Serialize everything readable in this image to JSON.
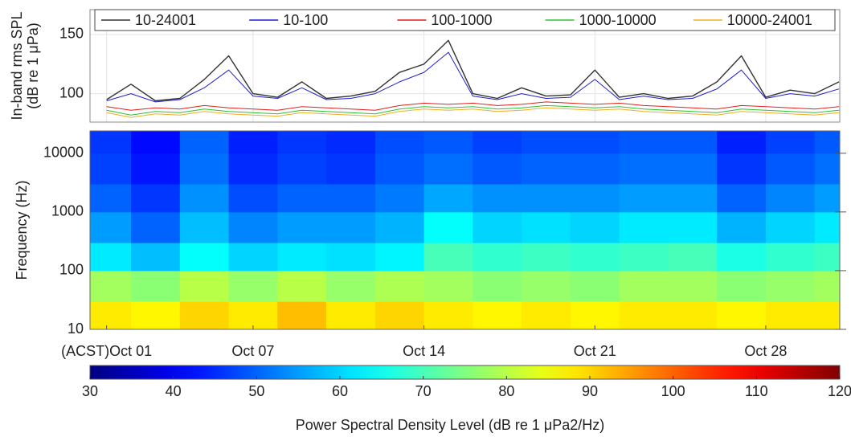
{
  "chart_data": [
    {
      "type": "line",
      "ylabel_lines": [
        "In-band rms SPL",
        "(dB re 1 μPa)"
      ],
      "x": [
        1,
        2,
        3,
        4,
        5,
        6,
        7,
        8,
        9,
        10,
        11,
        12,
        13,
        14,
        15,
        16,
        17,
        18,
        19,
        20,
        21,
        22,
        23,
        24,
        25,
        26,
        27,
        28,
        29,
        30,
        31
      ],
      "xlim": [
        0.32,
        31.03
      ],
      "ylim": [
        76,
        171
      ],
      "yticks": [
        100,
        150
      ],
      "grid": true,
      "legend": "top",
      "series": [
        {
          "name": "10-24001",
          "color": "#333333",
          "values": [
            95,
            108,
            94,
            96,
            112,
            132,
            100,
            97,
            110,
            96,
            98,
            102,
            118,
            125,
            145,
            100,
            96,
            105,
            98,
            99,
            120,
            97,
            100,
            96,
            98,
            110,
            132,
            97,
            103,
            100,
            110
          ]
        },
        {
          "name": "10-100",
          "color": "#1f1fd0",
          "values": [
            94,
            100,
            93,
            95,
            105,
            120,
            98,
            96,
            105,
            95,
            96,
            100,
            110,
            118,
            135,
            98,
            95,
            100,
            96,
            97,
            112,
            95,
            98,
            95,
            96,
            104,
            120,
            96,
            100,
            98,
            104
          ]
        },
        {
          "name": "100-1000",
          "color": "#e0201a",
          "values": [
            89,
            86,
            88,
            87,
            90,
            88,
            87,
            86,
            89,
            88,
            87,
            86,
            90,
            92,
            91,
            92,
            90,
            91,
            93,
            92,
            91,
            92,
            90,
            89,
            88,
            87,
            90,
            89,
            88,
            87,
            89
          ]
        },
        {
          "name": "1000-10000",
          "color": "#2fc02f",
          "values": [
            86,
            82,
            85,
            84,
            87,
            85,
            84,
            83,
            86,
            85,
            84,
            83,
            87,
            89,
            88,
            89,
            87,
            88,
            90,
            89,
            88,
            89,
            87,
            86,
            85,
            84,
            87,
            86,
            85,
            84,
            86
          ]
        },
        {
          "name": "10000-24001",
          "color": "#f0b020",
          "values": [
            84,
            80,
            83,
            82,
            85,
            83,
            82,
            81,
            84,
            83,
            82,
            81,
            85,
            87,
            86,
            87,
            85,
            86,
            88,
            87,
            86,
            87,
            85,
            84,
            83,
            82,
            85,
            84,
            83,
            82,
            84
          ]
        }
      ]
    },
    {
      "type": "heatmap",
      "ylabel": "Frequency (Hz)",
      "colorbar_label": "Power Spectral Density Level (dB re 1 μPa2/Hz)",
      "colormap": "jet",
      "log_y": true,
      "xlim": [
        0.32,
        31.03
      ],
      "xticks": [
        {
          "value": 1,
          "label": "(ACST)Oct 01"
        },
        {
          "value": 7,
          "label": "Oct 07"
        },
        {
          "value": 14,
          "label": "Oct 14"
        },
        {
          "value": 21,
          "label": "Oct 21"
        },
        {
          "value": 28,
          "label": "Oct 28"
        }
      ],
      "ylim": [
        10,
        24000
      ],
      "yticks": [
        10,
        100,
        1000,
        10000
      ],
      "x_edges": [
        0.32,
        2,
        4,
        6,
        8,
        10,
        12,
        14,
        16,
        18,
        20,
        22,
        24,
        26,
        28,
        30,
        31.03
      ],
      "y_edges": [
        10,
        30,
        100,
        300,
        1000,
        3000,
        10000,
        24000
      ],
      "z": [
        [
          88,
          87,
          90,
          88,
          92,
          88,
          90,
          88,
          87,
          88,
          87,
          88,
          88,
          87,
          88,
          88
        ],
        [
          78,
          76,
          80,
          77,
          80,
          77,
          79,
          78,
          76,
          77,
          76,
          78,
          78,
          76,
          77,
          78
        ],
        [
          62,
          58,
          64,
          60,
          62,
          61,
          63,
          70,
          68,
          69,
          68,
          69,
          70,
          66,
          68,
          69
        ],
        [
          55,
          50,
          58,
          53,
          55,
          55,
          57,
          64,
          60,
          61,
          60,
          62,
          62,
          57,
          60,
          62
        ],
        [
          50,
          46,
          54,
          48,
          50,
          50,
          52,
          56,
          54,
          54,
          54,
          55,
          55,
          50,
          53,
          55
        ],
        [
          47,
          43,
          51,
          45,
          47,
          46,
          49,
          51,
          49,
          50,
          50,
          51,
          51,
          46,
          49,
          51
        ],
        [
          46,
          42,
          50,
          44,
          46,
          45,
          48,
          49,
          47,
          48,
          48,
          49,
          49,
          44,
          47,
          49
        ]
      ],
      "clim": [
        30,
        120
      ],
      "cticks": [
        30,
        40,
        50,
        60,
        70,
        80,
        90,
        100,
        110,
        120
      ]
    }
  ]
}
